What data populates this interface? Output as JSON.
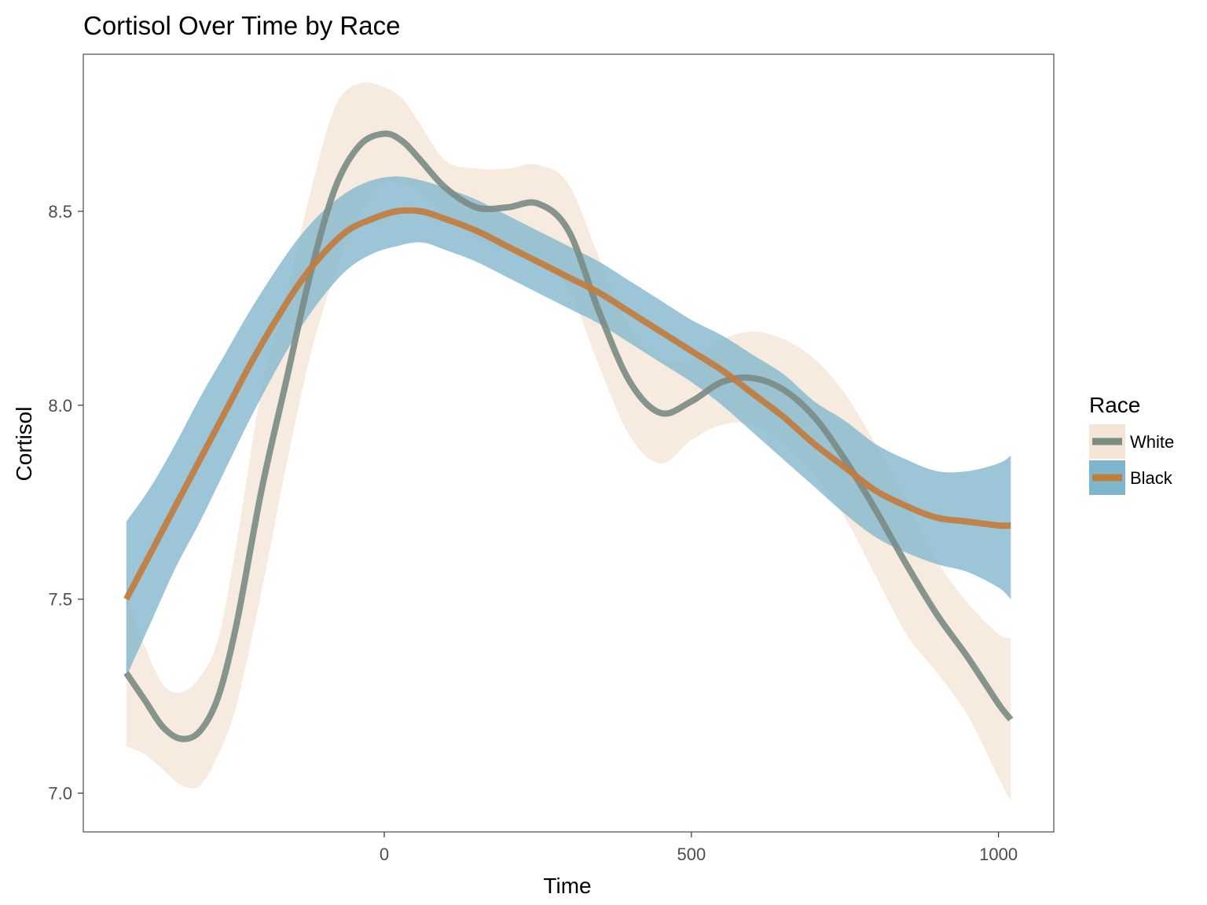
{
  "chart_data": {
    "type": "line",
    "title": "Cortisol Over Time by Race",
    "xlabel": "Time",
    "ylabel": "Cortisol",
    "xlim": [
      -490,
      1090
    ],
    "ylim": [
      6.9,
      8.905
    ],
    "x_ticks": [
      0,
      500,
      1000
    ],
    "x_tick_labels": [
      "0",
      "500",
      "1000"
    ],
    "y_ticks": [
      7.0,
      7.5,
      8.0,
      8.5
    ],
    "y_tick_labels": [
      "7.0",
      "7.5",
      "8.0",
      "8.5"
    ],
    "grid": false,
    "legend": {
      "title": "Race",
      "position": "right"
    },
    "series": [
      {
        "name": "White",
        "line_color": "#7b8c85",
        "band_color": "#f5e5d6",
        "x": [
          -420,
          -390,
          -360,
          -330,
          -300,
          -270,
          -240,
          -200,
          -160,
          -120,
          -80,
          -40,
          0,
          30,
          60,
          100,
          150,
          200,
          250,
          300,
          350,
          400,
          450,
          500,
          550,
          600,
          650,
          700,
          750,
          800,
          850,
          900,
          950,
          1000,
          1020
        ],
        "y": [
          7.31,
          7.24,
          7.17,
          7.14,
          7.16,
          7.25,
          7.44,
          7.78,
          8.06,
          8.34,
          8.56,
          8.67,
          8.7,
          8.68,
          8.63,
          8.56,
          8.51,
          8.51,
          8.52,
          8.45,
          8.24,
          8.06,
          7.98,
          8.01,
          8.06,
          8.07,
          8.04,
          7.97,
          7.86,
          7.73,
          7.59,
          7.46,
          7.35,
          7.23,
          7.19
        ],
        "lower": [
          7.12,
          7.1,
          7.06,
          7.02,
          7.02,
          7.1,
          7.23,
          7.52,
          7.84,
          8.13,
          8.34,
          8.49,
          8.57,
          8.57,
          8.55,
          8.49,
          8.43,
          8.4,
          8.38,
          8.3,
          8.1,
          7.92,
          7.85,
          7.91,
          7.95,
          7.95,
          7.9,
          7.82,
          7.71,
          7.56,
          7.41,
          7.31,
          7.2,
          7.04,
          6.98
        ],
        "upper": [
          7.51,
          7.38,
          7.28,
          7.26,
          7.3,
          7.4,
          7.65,
          8.04,
          8.28,
          8.55,
          8.77,
          8.83,
          8.82,
          8.79,
          8.72,
          8.63,
          8.61,
          8.61,
          8.62,
          8.57,
          8.38,
          8.2,
          8.12,
          8.12,
          8.17,
          8.19,
          8.17,
          8.12,
          8.03,
          7.9,
          7.76,
          7.6,
          7.49,
          7.41,
          7.4
        ]
      },
      {
        "name": "Black",
        "line_color": "#c27c3e",
        "band_color": "#80b6cd",
        "x": [
          -420,
          -380,
          -340,
          -300,
          -260,
          -220,
          -180,
          -140,
          -100,
          -60,
          -20,
          20,
          60,
          100,
          150,
          200,
          250,
          300,
          350,
          400,
          450,
          500,
          550,
          600,
          650,
          700,
          750,
          800,
          850,
          900,
          950,
          1000,
          1020
        ],
        "y": [
          7.5,
          7.62,
          7.74,
          7.86,
          7.98,
          8.1,
          8.21,
          8.31,
          8.39,
          8.45,
          8.48,
          8.5,
          8.5,
          8.48,
          8.45,
          8.41,
          8.37,
          8.33,
          8.29,
          8.24,
          8.19,
          8.14,
          8.09,
          8.03,
          7.97,
          7.9,
          7.84,
          7.78,
          7.74,
          7.71,
          7.7,
          7.69,
          7.69
        ],
        "lower": [
          7.3,
          7.44,
          7.58,
          7.7,
          7.83,
          7.96,
          8.08,
          8.19,
          8.28,
          8.35,
          8.39,
          8.41,
          8.42,
          8.4,
          8.37,
          8.33,
          8.29,
          8.25,
          8.21,
          8.16,
          8.11,
          8.06,
          8.0,
          7.93,
          7.86,
          7.79,
          7.72,
          7.66,
          7.62,
          7.59,
          7.57,
          7.53,
          7.5
        ],
        "upper": [
          7.7,
          7.79,
          7.9,
          8.02,
          8.13,
          8.24,
          8.34,
          8.43,
          8.5,
          8.55,
          8.58,
          8.59,
          8.58,
          8.56,
          8.53,
          8.49,
          8.45,
          8.41,
          8.37,
          8.32,
          8.27,
          8.22,
          8.18,
          8.13,
          8.08,
          8.01,
          7.96,
          7.9,
          7.86,
          7.83,
          7.83,
          7.85,
          7.87
        ]
      }
    ]
  },
  "legend": {
    "title": "Race",
    "items": [
      {
        "label": "White",
        "line_color": "#7b8c85",
        "band_color": "#f5e5d6"
      },
      {
        "label": "Black",
        "line_color": "#c27c3e",
        "band_color": "#80b6cd"
      }
    ]
  },
  "colors": {
    "panel_border": "#4d4d4d",
    "tick_text": "#4d4d4d",
    "background": "#ffffff"
  }
}
